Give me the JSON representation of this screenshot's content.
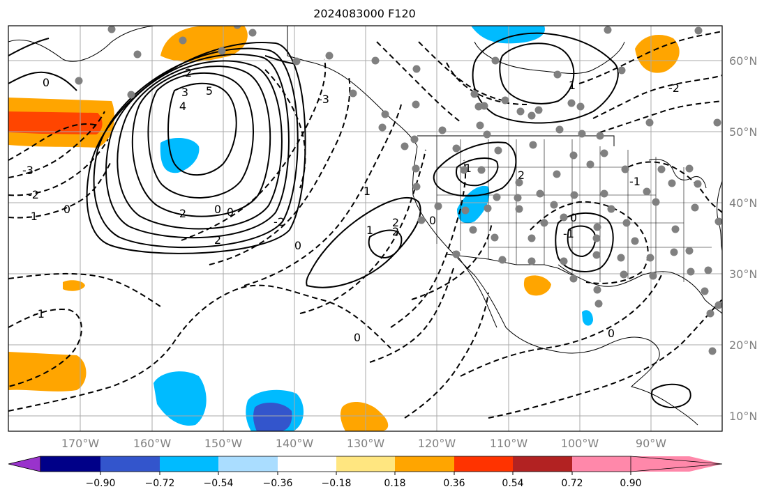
{
  "title": "2024083000 F120",
  "lat_labels": [
    "60°N",
    "50°N",
    "40°N",
    "30°N",
    "20°N",
    "10°N"
  ],
  "lon_labels": [
    "170°W",
    "160°W",
    "150°W",
    "140°W",
    "130°W",
    "120°W",
    "110°W",
    "100°W",
    "90°W"
  ],
  "colorbar": {
    "ticks": [
      "−0.90",
      "−0.72",
      "−0.54",
      "−0.36",
      "−0.18",
      "0.18",
      "0.36",
      "0.54",
      "0.72",
      "0.90"
    ],
    "colors": [
      "#9933cc",
      "#000088",
      "#3355cc",
      "#00bbff",
      "#aaddff",
      "#ffffff",
      "#ffe680",
      "#ffa500",
      "#ff3300",
      "#b22222",
      "#ff88aa"
    ]
  },
  "contour_labels": [
    "0",
    "2",
    "3",
    "4",
    "5",
    "2",
    "0",
    "0",
    "2",
    "-3",
    "-2",
    "-1",
    "0",
    "-1",
    "-3",
    "1",
    "2",
    "-2",
    "0",
    "1",
    "2",
    "0",
    "-1",
    "0",
    "2",
    "-1",
    "0",
    "1",
    "0",
    "-1",
    "-2"
  ],
  "colors": {
    "frame": "#000000",
    "grid": "#aaaaaa",
    "station": "#808080",
    "warm": "#ffa500",
    "red": "#ff4500",
    "cool": "#00bbff",
    "blue": "#3355cc"
  }
}
